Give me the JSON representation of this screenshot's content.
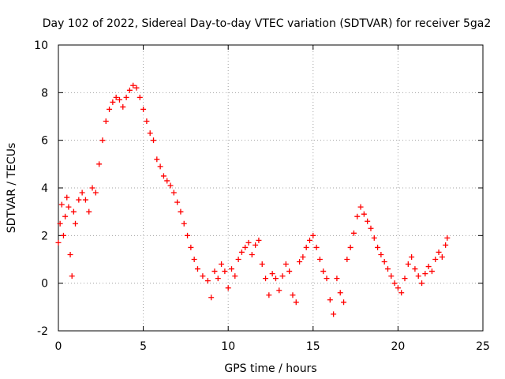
{
  "chart_data": {
    "type": "scatter",
    "title": "Day 102 of 2022, Sidereal Day-to-day VTEC variation (SDTVAR) for receiver 5ga2",
    "xlabel": "GPS time / hours",
    "ylabel": "SDTVAR / TECUs",
    "xlim": [
      0,
      25
    ],
    "ylim": [
      -2,
      10
    ],
    "xticks": [
      0,
      5,
      10,
      15,
      20,
      25
    ],
    "yticks": [
      -2,
      0,
      2,
      4,
      6,
      8,
      10
    ],
    "xtick_labels": [
      "0",
      "5",
      "10",
      "15",
      "20",
      "25"
    ],
    "ytick_labels": [
      "-2",
      "0",
      "2",
      "4",
      "6",
      "8",
      "10"
    ],
    "grid": true,
    "marker": "+",
    "color": "#ff0000",
    "series": [
      {
        "name": "SDTVAR",
        "points": [
          [
            0.0,
            1.7
          ],
          [
            0.1,
            2.5
          ],
          [
            0.2,
            3.3
          ],
          [
            0.3,
            2.0
          ],
          [
            0.4,
            2.8
          ],
          [
            0.5,
            3.6
          ],
          [
            0.6,
            3.2
          ],
          [
            0.7,
            1.2
          ],
          [
            0.8,
            0.3
          ],
          [
            0.9,
            3.0
          ],
          [
            1.0,
            2.5
          ],
          [
            1.2,
            3.5
          ],
          [
            1.4,
            3.8
          ],
          [
            1.6,
            3.5
          ],
          [
            1.8,
            3.0
          ],
          [
            2.0,
            4.0
          ],
          [
            2.2,
            3.8
          ],
          [
            2.4,
            5.0
          ],
          [
            2.6,
            6.0
          ],
          [
            2.8,
            6.8
          ],
          [
            3.0,
            7.3
          ],
          [
            3.2,
            7.6
          ],
          [
            3.4,
            7.8
          ],
          [
            3.6,
            7.7
          ],
          [
            3.8,
            7.4
          ],
          [
            4.0,
            7.8
          ],
          [
            4.2,
            8.1
          ],
          [
            4.4,
            8.3
          ],
          [
            4.6,
            8.2
          ],
          [
            4.8,
            7.8
          ],
          [
            5.0,
            7.3
          ],
          [
            5.2,
            6.8
          ],
          [
            5.4,
            6.3
          ],
          [
            5.6,
            6.0
          ],
          [
            5.8,
            5.2
          ],
          [
            6.0,
            4.9
          ],
          [
            6.2,
            4.5
          ],
          [
            6.4,
            4.3
          ],
          [
            6.6,
            4.1
          ],
          [
            6.8,
            3.8
          ],
          [
            7.0,
            3.4
          ],
          [
            7.2,
            3.0
          ],
          [
            7.4,
            2.5
          ],
          [
            7.6,
            2.0
          ],
          [
            7.8,
            1.5
          ],
          [
            8.0,
            1.0
          ],
          [
            8.2,
            0.6
          ],
          [
            8.5,
            0.3
          ],
          [
            8.8,
            0.1
          ],
          [
            9.0,
            -0.6
          ],
          [
            9.2,
            0.5
          ],
          [
            9.4,
            0.2
          ],
          [
            9.6,
            0.8
          ],
          [
            9.8,
            0.5
          ],
          [
            10.0,
            -0.2
          ],
          [
            10.2,
            0.6
          ],
          [
            10.4,
            0.3
          ],
          [
            10.6,
            1.0
          ],
          [
            10.8,
            1.3
          ],
          [
            11.0,
            1.5
          ],
          [
            11.2,
            1.7
          ],
          [
            11.4,
            1.2
          ],
          [
            11.6,
            1.6
          ],
          [
            11.8,
            1.8
          ],
          [
            12.0,
            0.8
          ],
          [
            12.2,
            0.2
          ],
          [
            12.4,
            -0.5
          ],
          [
            12.6,
            0.4
          ],
          [
            12.8,
            0.2
          ],
          [
            13.0,
            -0.3
          ],
          [
            13.2,
            0.3
          ],
          [
            13.4,
            0.8
          ],
          [
            13.6,
            0.5
          ],
          [
            13.8,
            -0.5
          ],
          [
            14.0,
            -0.8
          ],
          [
            14.2,
            0.9
          ],
          [
            14.4,
            1.1
          ],
          [
            14.6,
            1.5
          ],
          [
            14.8,
            1.8
          ],
          [
            15.0,
            2.0
          ],
          [
            15.2,
            1.5
          ],
          [
            15.4,
            1.0
          ],
          [
            15.6,
            0.5
          ],
          [
            15.8,
            0.2
          ],
          [
            16.0,
            -0.7
          ],
          [
            16.2,
            -1.3
          ],
          [
            16.4,
            0.2
          ],
          [
            16.6,
            -0.4
          ],
          [
            16.8,
            -0.8
          ],
          [
            17.0,
            1.0
          ],
          [
            17.2,
            1.5
          ],
          [
            17.4,
            2.1
          ],
          [
            17.6,
            2.8
          ],
          [
            17.8,
            3.2
          ],
          [
            18.0,
            2.9
          ],
          [
            18.2,
            2.6
          ],
          [
            18.4,
            2.3
          ],
          [
            18.6,
            1.9
          ],
          [
            18.8,
            1.5
          ],
          [
            19.0,
            1.2
          ],
          [
            19.2,
            0.9
          ],
          [
            19.4,
            0.6
          ],
          [
            19.6,
            0.3
          ],
          [
            19.8,
            0.0
          ],
          [
            20.0,
            -0.2
          ],
          [
            20.2,
            -0.4
          ],
          [
            20.4,
            0.2
          ],
          [
            20.6,
            0.8
          ],
          [
            20.8,
            1.1
          ],
          [
            21.0,
            0.6
          ],
          [
            21.2,
            0.3
          ],
          [
            21.4,
            0.0
          ],
          [
            21.6,
            0.4
          ],
          [
            21.8,
            0.7
          ],
          [
            22.0,
            0.5
          ],
          [
            22.2,
            1.0
          ],
          [
            22.4,
            1.3
          ],
          [
            22.6,
            1.1
          ],
          [
            22.8,
            1.6
          ],
          [
            22.9,
            1.9
          ]
        ]
      }
    ]
  }
}
